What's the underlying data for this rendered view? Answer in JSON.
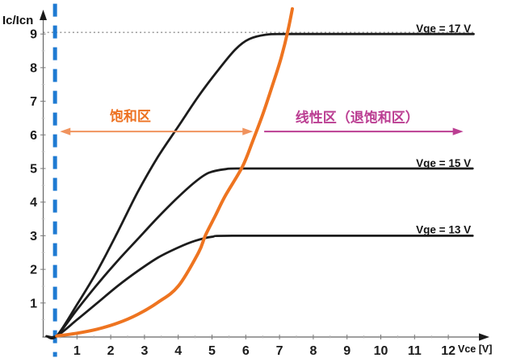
{
  "chart_data": {
    "type": "line",
    "xlabel": "Vce [V]",
    "ylabel": "Ic/Icn",
    "xlim": [
      0,
      12.8
    ],
    "ylim": [
      0,
      9.8
    ],
    "grid": false,
    "legend_position": "none",
    "x_ticks": [
      1,
      2,
      3,
      4,
      5,
      6,
      7,
      8,
      9,
      10,
      11,
      12
    ],
    "y_ticks": [
      1,
      2,
      3,
      4,
      5,
      6,
      7,
      8,
      9
    ],
    "series": [
      {
        "id": "vge-17",
        "label": "Vge = 17 V",
        "color": "#1c1c1c",
        "width": 2.8,
        "points": [
          [
            0.1,
            0.01
          ],
          [
            0.4,
            0.02
          ],
          [
            1.0,
            0.95
          ],
          [
            1.6,
            1.95
          ],
          [
            2.2,
            3.1
          ],
          [
            2.8,
            4.3
          ],
          [
            3.4,
            5.35
          ],
          [
            4.0,
            6.25
          ],
          [
            4.6,
            7.15
          ],
          [
            5.2,
            7.95
          ],
          [
            5.7,
            8.55
          ],
          [
            6.1,
            8.85
          ],
          [
            6.6,
            8.98
          ],
          [
            7.2,
            9.0
          ],
          [
            9.5,
            9.0
          ],
          [
            12.75,
            9.0
          ]
        ]
      },
      {
        "id": "vge-15",
        "label": "Vge = 15 V",
        "color": "#1c1c1c",
        "width": 2.8,
        "points": [
          [
            0.1,
            0.01
          ],
          [
            0.4,
            0.02
          ],
          [
            1.0,
            0.8
          ],
          [
            1.6,
            1.55
          ],
          [
            2.2,
            2.25
          ],
          [
            2.8,
            2.9
          ],
          [
            3.4,
            3.55
          ],
          [
            4.0,
            4.15
          ],
          [
            4.5,
            4.6
          ],
          [
            4.9,
            4.87
          ],
          [
            5.4,
            4.98
          ],
          [
            6.0,
            5.0
          ],
          [
            9.5,
            5.0
          ],
          [
            12.72,
            5.0
          ]
        ]
      },
      {
        "id": "vge-13",
        "label": "Vge = 13 V",
        "color": "#1c1c1c",
        "width": 2.8,
        "points": [
          [
            0.1,
            0.01
          ],
          [
            0.4,
            0.02
          ],
          [
            1.0,
            0.5
          ],
          [
            1.6,
            1.0
          ],
          [
            2.2,
            1.5
          ],
          [
            2.8,
            1.95
          ],
          [
            3.4,
            2.35
          ],
          [
            4.0,
            2.65
          ],
          [
            4.5,
            2.85
          ],
          [
            5.0,
            2.97
          ],
          [
            5.6,
            3.0
          ],
          [
            9.5,
            3.0
          ],
          [
            12.72,
            3.0
          ]
        ]
      },
      {
        "id": "desat-load-curve",
        "label": "",
        "color": "#ee7420",
        "width": 4,
        "points": [
          [
            0.4,
            0.02
          ],
          [
            1.0,
            0.1
          ],
          [
            1.6,
            0.22
          ],
          [
            2.2,
            0.4
          ],
          [
            2.8,
            0.66
          ],
          [
            3.4,
            1.02
          ],
          [
            4.0,
            1.5
          ],
          [
            4.6,
            2.5
          ],
          [
            4.8,
            3.0
          ],
          [
            5.1,
            3.6
          ],
          [
            5.4,
            4.2
          ],
          [
            5.9,
            5.05
          ],
          [
            6.2,
            5.8
          ],
          [
            6.5,
            6.6
          ],
          [
            6.8,
            7.5
          ],
          [
            7.05,
            8.3
          ],
          [
            7.25,
            9.1
          ],
          [
            7.38,
            9.75
          ]
        ]
      }
    ],
    "curve_labels": [
      {
        "text": "Vge = 17 V",
        "x": 12.67,
        "y": 9.15
      },
      {
        "text": "Vge = 15 V",
        "x": 12.67,
        "y": 5.14
      },
      {
        "text": "Vge = 13 V",
        "x": 12.67,
        "y": 3.17
      }
    ],
    "reference_lines": [
      {
        "orientation": "horizontal",
        "value": 9,
        "style": "dotted",
        "color": "#8f8f8f",
        "from": 0,
        "to": 12.78
      },
      {
        "orientation": "vertical",
        "value": 0.35,
        "style": "dashed",
        "color": "#1e7ad2",
        "from": -0.6,
        "to": 9.9,
        "width": 5
      }
    ],
    "region_annotations": [
      {
        "label": "饱和区",
        "text_color": "#ed7120",
        "arrow_color": "#f0935e",
        "arrow": "double",
        "x_from": 0.52,
        "x_to": 6.19,
        "y": 6.1,
        "label_x": 2.58,
        "label_y": 6.56
      },
      {
        "label": "线性区（退饱和区）",
        "text_color": "#bb3e92",
        "arrow_color": "#bb3e92",
        "arrow": "right",
        "x_from": 6.45,
        "x_to": 12.42,
        "y": 6.1,
        "label_x": 9.3,
        "label_y": 6.52
      }
    ]
  }
}
